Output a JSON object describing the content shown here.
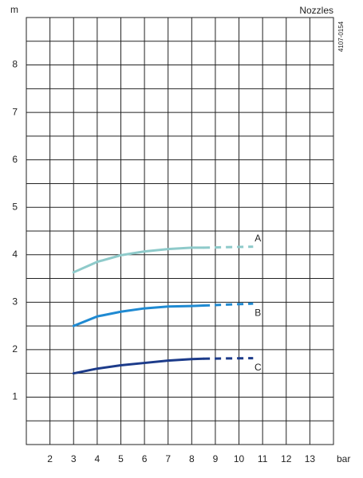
{
  "chart_data": {
    "type": "line",
    "y_label": "m",
    "x_label": "bar",
    "title": "Nozzles",
    "code": "4107-0154",
    "xlim": [
      1,
      14
    ],
    "xticks": [
      2,
      3,
      4,
      5,
      6,
      7,
      8,
      9,
      10,
      11,
      12,
      13
    ],
    "ylim": [
      0,
      9
    ],
    "yticks": [
      1,
      2,
      3,
      4,
      5,
      6,
      7,
      8
    ],
    "y_minor_grid": [
      0.5,
      1.5,
      2.5,
      3.5,
      4.5,
      5.5,
      6.5,
      7.5,
      8.5
    ],
    "grid": true,
    "x": [
      3,
      4,
      5,
      6,
      7,
      8,
      8.5,
      10.6
    ],
    "dashed_from_x": 8.5,
    "series": [
      {
        "name": "A",
        "color": "#8ecaca",
        "label_position": "above",
        "values": [
          3.63,
          3.85,
          3.99,
          4.07,
          4.12,
          4.15,
          4.15,
          4.17
        ]
      },
      {
        "name": "B",
        "color": "#1f8ad2",
        "label_position": "below",
        "values": [
          2.5,
          2.7,
          2.8,
          2.87,
          2.91,
          2.92,
          2.93,
          2.97
        ]
      },
      {
        "name": "C",
        "color": "#1c3b8a",
        "label_position": "below",
        "values": [
          1.5,
          1.6,
          1.67,
          1.72,
          1.77,
          1.8,
          1.81,
          1.82
        ]
      }
    ]
  }
}
